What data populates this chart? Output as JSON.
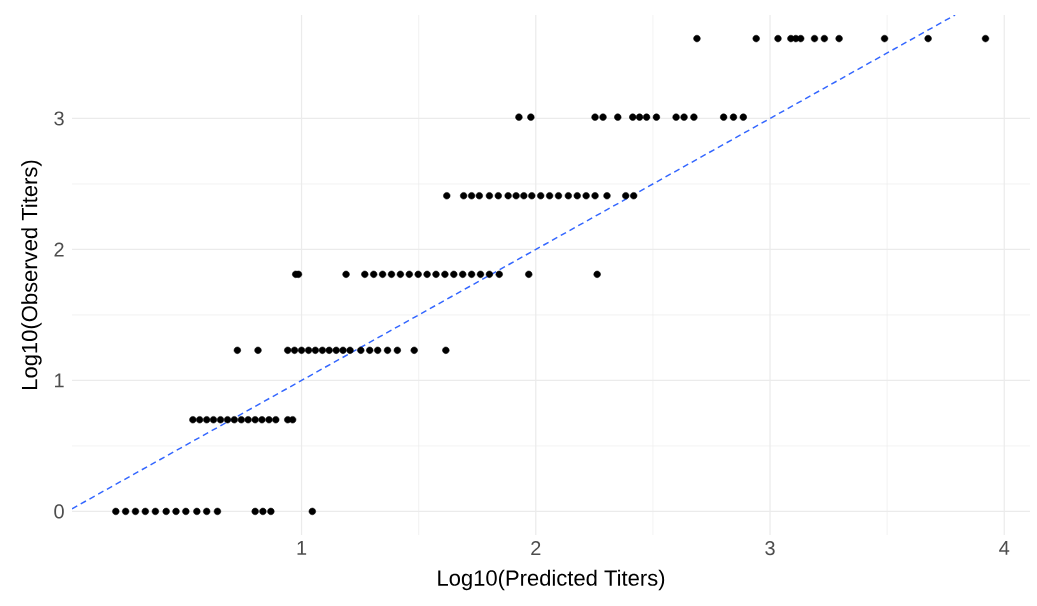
{
  "chart_data": {
    "type": "scatter",
    "xlabel": "Log10(Predicted Titers)",
    "ylabel": "Log10(Observed Titers)",
    "xlim": [
      0.02,
      4.11
    ],
    "ylim": [
      -0.18,
      3.79
    ],
    "xticks": [
      1,
      2,
      3,
      4
    ],
    "yticks": [
      0,
      1,
      2,
      3
    ],
    "grid": true,
    "series": [
      {
        "color": "#000000",
        "marker": "circle",
        "x": [
          0.207,
          0.249,
          0.291,
          0.333,
          0.376,
          0.422,
          0.464,
          0.506,
          0.553,
          0.595,
          0.641,
          0.802,
          0.835,
          0.869,
          1.046,
          0.536,
          0.565,
          0.595,
          0.624,
          0.654,
          0.684,
          0.713,
          0.743,
          0.772,
          0.802,
          0.831,
          0.861,
          0.89,
          0.941,
          0.962,
          0.726,
          0.814,
          0.941,
          0.97,
          1.0,
          1.03,
          1.059,
          1.089,
          1.118,
          1.148,
          1.177,
          1.207,
          1.253,
          1.291,
          1.325,
          1.367,
          1.409,
          1.481,
          1.616,
          0.975,
          0.987,
          1.19,
          1.27,
          1.308,
          1.346,
          1.384,
          1.422,
          1.46,
          1.498,
          1.536,
          1.574,
          1.612,
          1.65,
          1.688,
          1.726,
          1.764,
          1.802,
          1.844,
          1.97,
          2.262,
          1.62,
          1.692,
          1.726,
          1.759,
          1.802,
          1.84,
          1.882,
          1.916,
          1.949,
          1.983,
          2.021,
          2.059,
          2.097,
          2.139,
          2.177,
          2.215,
          2.253,
          2.304,
          2.384,
          2.418,
          1.928,
          1.979,
          2.253,
          2.287,
          2.35,
          2.414,
          2.443,
          2.473,
          2.515,
          2.599,
          2.633,
          2.675,
          2.802,
          2.844,
          2.886,
          2.688,
          2.941,
          3.034,
          3.089,
          3.11,
          3.131,
          3.19,
          3.232,
          3.295,
          3.489,
          3.675,
          3.92
        ],
        "values": [
          0,
          0,
          0,
          0,
          0,
          0,
          0,
          0,
          0,
          0,
          0,
          0,
          0,
          0,
          0,
          0.7,
          0.7,
          0.7,
          0.7,
          0.7,
          0.7,
          0.7,
          0.7,
          0.7,
          0.7,
          0.7,
          0.7,
          0.7,
          0.7,
          0.7,
          1.23,
          1.23,
          1.23,
          1.23,
          1.23,
          1.23,
          1.23,
          1.23,
          1.23,
          1.23,
          1.23,
          1.23,
          1.23,
          1.23,
          1.23,
          1.23,
          1.23,
          1.23,
          1.23,
          1.81,
          1.81,
          1.81,
          1.81,
          1.81,
          1.81,
          1.81,
          1.81,
          1.81,
          1.81,
          1.81,
          1.81,
          1.81,
          1.81,
          1.81,
          1.81,
          1.81,
          1.81,
          1.81,
          1.81,
          1.81,
          2.41,
          2.41,
          2.41,
          2.41,
          2.41,
          2.41,
          2.41,
          2.41,
          2.41,
          2.41,
          2.41,
          2.41,
          2.41,
          2.41,
          2.41,
          2.41,
          2.41,
          2.41,
          2.41,
          2.41,
          3.01,
          3.01,
          3.01,
          3.01,
          3.01,
          3.01,
          3.01,
          3.01,
          3.01,
          3.01,
          3.01,
          3.01,
          3.01,
          3.01,
          3.01,
          3.61,
          3.61,
          3.61,
          3.61,
          3.61,
          3.61,
          3.61,
          3.61,
          3.61,
          3.61,
          3.61,
          3.61
        ]
      },
      {
        "type": "line",
        "color": "#3366ff",
        "line_style": "dashed",
        "marker": "none",
        "x": [
          0.02,
          3.79
        ],
        "values": [
          0.02,
          3.79
        ]
      }
    ]
  }
}
